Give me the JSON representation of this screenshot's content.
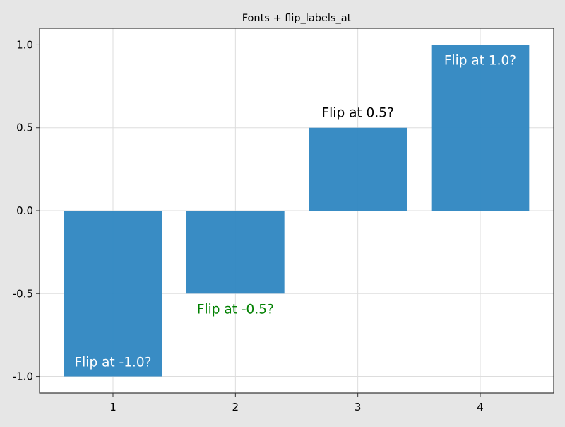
{
  "chart_data": {
    "type": "bar",
    "title": "Fonts + flip_labels_at",
    "xlabel": "",
    "ylabel": "",
    "categories": [
      1,
      2,
      3,
      4
    ],
    "x_tick_labels": [
      "1",
      "2",
      "3",
      "4"
    ],
    "values": [
      -1.0,
      -0.5,
      0.5,
      1.0
    ],
    "labels": [
      "Flip at -1.0?",
      "Flip at -0.5?",
      "Flip at 0.5?",
      "Flip at 1.0?"
    ],
    "label_colors": [
      "#ffffff",
      "#008000",
      "#000000",
      "#ffffff"
    ],
    "label_position": [
      "inside-end",
      "outside-end",
      "outside-end",
      "inside-end"
    ],
    "bar_color": "#2e86c1",
    "xlim": [
      0.4,
      4.6
    ],
    "ylim": [
      -1.1,
      1.1
    ],
    "y_ticks": [
      -1.0,
      -0.5,
      0.0,
      0.5,
      1.0
    ],
    "y_tick_labels": [
      "-1.0",
      "-0.5",
      "0.0",
      "0.5",
      "1.0"
    ],
    "grid": true,
    "background": "#e6e6e6",
    "plot_background": "#ffffff",
    "legend": "none"
  }
}
